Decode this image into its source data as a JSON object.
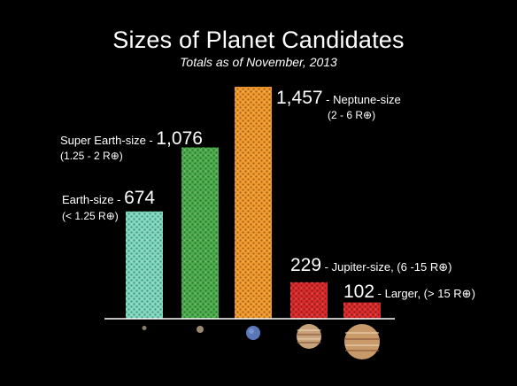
{
  "chart_data": {
    "type": "bar",
    "title": "Sizes of Planet Candidates",
    "subtitle": "Totals as of November, 2013",
    "categories": [
      "Earth-size",
      "Super Earth-size",
      "Neptune-size",
      "Jupiter-size",
      "Larger"
    ],
    "values": [
      674,
      1076,
      1457,
      229,
      102
    ],
    "value_labels": [
      "674",
      "1,076",
      "1,457",
      "229",
      "102"
    ],
    "size_ranges": [
      "(< 1.25 R⊕)",
      "(1.25 - 2 R⊕)",
      "(2 - 6 R⊕)",
      "(6 -15 R⊕)",
      "(> 15 R⊕)"
    ],
    "label_prefixes": [
      "Earth-size - ",
      "Super Earth-size - ",
      "",
      "",
      ""
    ],
    "label_suffixes": [
      "",
      "",
      " - Neptune-size",
      " - Jupiter-size, (6 -15 R⊕)",
      " - Larger, (> 15 R⊕)"
    ],
    "colors": [
      "#7fd9c0",
      "#4cae4c",
      "#f29a2e",
      "#d92b2b",
      "#d92b2b"
    ],
    "planet_icons": [
      "rocky-planet-icon",
      "rocky-planet-icon",
      "neptune-icon",
      "jupiter-icon",
      "jupiter-icon"
    ],
    "ylim": [
      0,
      1457
    ],
    "grid": false,
    "xlabel": "",
    "ylabel": ""
  }
}
